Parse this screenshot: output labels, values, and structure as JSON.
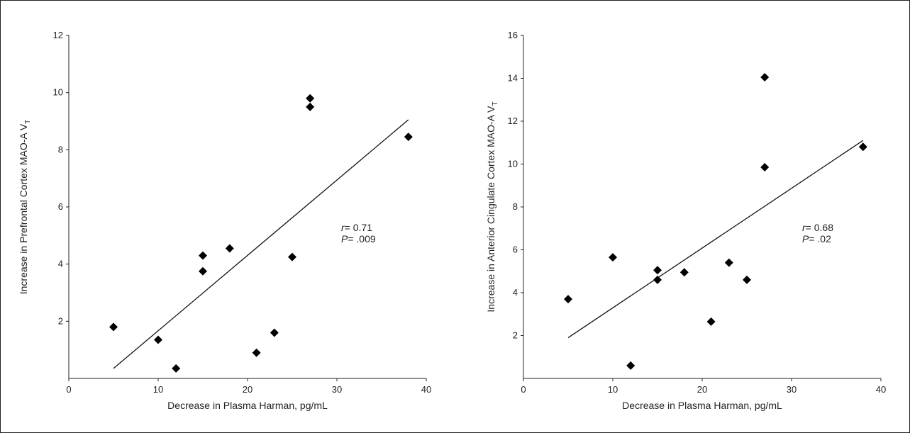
{
  "chart_data": [
    {
      "type": "scatter",
      "xlabel": "Decrease in Plasma Harman, pg/mL",
      "ylabel": "Increase in Prefrontal Cortex MAO-A V",
      "ylabel_sub": "T",
      "xlim": [
        0,
        40
      ],
      "ylim": [
        0,
        12
      ],
      "xticks": [
        "0",
        "10",
        "20",
        "30",
        "40"
      ],
      "yticks": [
        "2",
        "4",
        "6",
        "8",
        "10",
        "12"
      ],
      "x": [
        5,
        10,
        12,
        15,
        15,
        18,
        21,
        23,
        25,
        27,
        27,
        38
      ],
      "y": [
        1.8,
        1.35,
        0.35,
        4.3,
        3.75,
        4.55,
        0.9,
        1.6,
        4.25,
        9.8,
        9.5,
        8.45
      ],
      "fit_line": {
        "x": [
          5,
          38
        ],
        "y": [
          0.35,
          9.05
        ]
      },
      "annotations": {
        "r_key": "r",
        "r_value": "= 0.71",
        "p_key": "P",
        "p_value": "= .009"
      }
    },
    {
      "type": "scatter",
      "xlabel": "Decrease in Plasma Harman, pg/mL",
      "ylabel": "Increase in Anterior Cingulate Cortex MAO-A V",
      "ylabel_sub": "T",
      "xlim": [
        0,
        40
      ],
      "ylim": [
        0,
        16
      ],
      "xticks": [
        "0",
        "10",
        "20",
        "30",
        "40"
      ],
      "yticks": [
        "2",
        "4",
        "6",
        "8",
        "10",
        "12",
        "14",
        "16"
      ],
      "x": [
        5,
        10,
        12,
        15,
        15,
        18,
        21,
        23,
        25,
        27,
        27,
        38
      ],
      "y": [
        3.7,
        5.65,
        0.6,
        5.05,
        4.6,
        4.95,
        2.65,
        5.4,
        4.6,
        14.05,
        9.85,
        10.8
      ],
      "fit_line": {
        "x": [
          5,
          38
        ],
        "y": [
          1.9,
          11.1
        ]
      },
      "annotations": {
        "r_key": "r",
        "r_value": "= 0.68",
        "p_key": "P",
        "p_value": "= .02"
      }
    }
  ]
}
